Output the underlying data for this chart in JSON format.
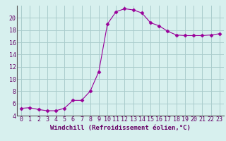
{
  "x": [
    0,
    1,
    2,
    3,
    4,
    5,
    6,
    7,
    8,
    9,
    10,
    11,
    12,
    13,
    14,
    15,
    16,
    17,
    18,
    19,
    20,
    21,
    22,
    23
  ],
  "y": [
    5.2,
    5.3,
    5.0,
    4.8,
    4.8,
    5.2,
    6.5,
    6.5,
    8.0,
    11.2,
    19.0,
    21.0,
    21.5,
    21.3,
    20.8,
    19.2,
    18.7,
    17.8,
    17.2,
    17.1,
    17.1,
    17.1,
    17.2,
    17.4
  ],
  "line_color": "#990099",
  "marker": "D",
  "marker_size": 2.5,
  "bg_color": "#d7f0ee",
  "grid_color": "#aacccc",
  "xlabel": "Windchill (Refroidissement éolien,°C)",
  "xlim": [
    -0.5,
    23.5
  ],
  "ylim": [
    4,
    22
  ],
  "yticks": [
    4,
    6,
    8,
    10,
    12,
    14,
    16,
    18,
    20
  ],
  "xticks": [
    0,
    1,
    2,
    3,
    4,
    5,
    6,
    7,
    8,
    9,
    10,
    11,
    12,
    13,
    14,
    15,
    16,
    17,
    18,
    19,
    20,
    21,
    22,
    23
  ],
  "xlabel_fontsize": 6.5,
  "tick_fontsize": 6.0,
  "line_color_hex": "#8b008b"
}
